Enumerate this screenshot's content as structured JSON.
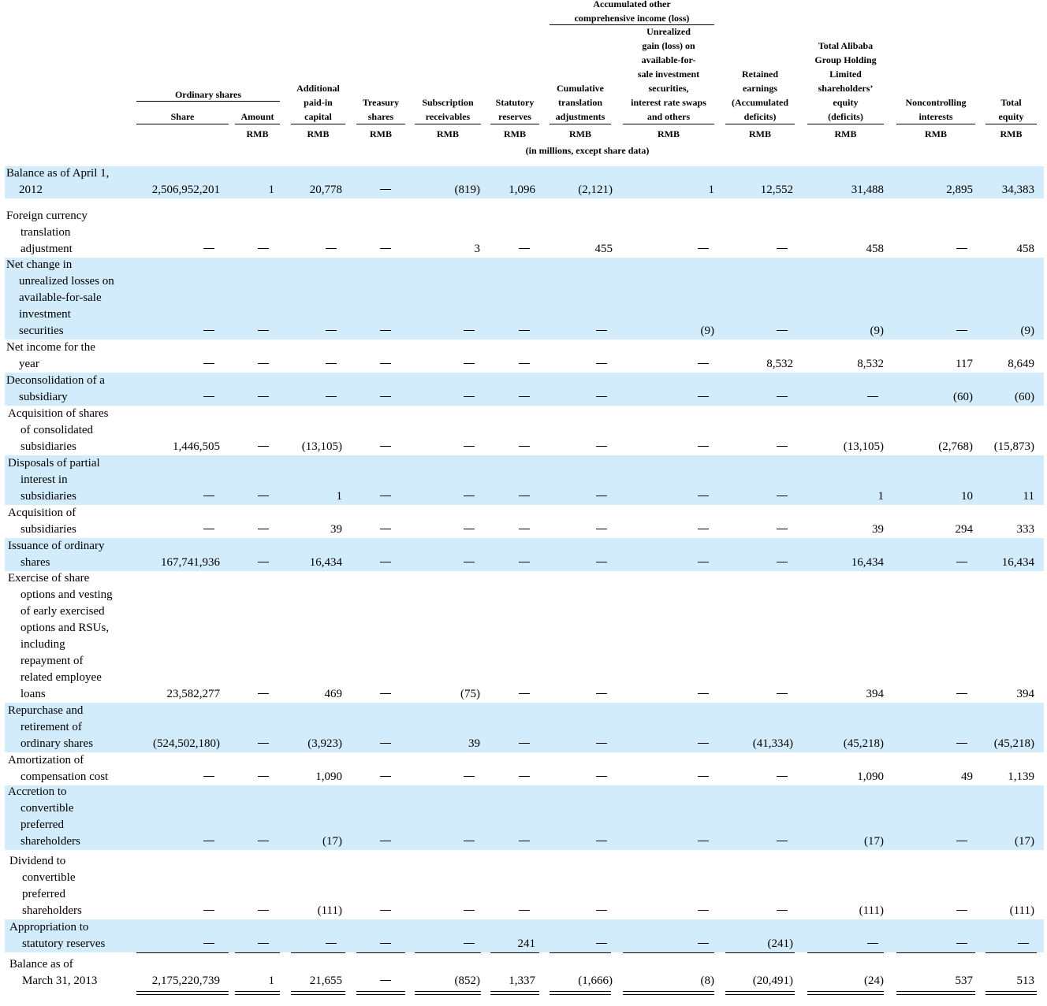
{
  "header": {
    "aoci_group": [
      "Accumulated other",
      "comprehensive income (loss)"
    ],
    "ordinary_group": "Ordinary shares",
    "columns": [
      {
        "label": [
          "Share"
        ],
        "currency": ""
      },
      {
        "label": [
          "Amount"
        ],
        "currency": "RMB"
      },
      {
        "label": [
          "Additional",
          "paid-in",
          "capital"
        ],
        "currency": "RMB"
      },
      {
        "label": [
          "Treasury",
          "shares"
        ],
        "currency": "RMB"
      },
      {
        "label": [
          "Subscription",
          "receivables"
        ],
        "currency": "RMB"
      },
      {
        "label": [
          "Statutory",
          "reserves"
        ],
        "currency": "RMB"
      },
      {
        "label": [
          "Cumulative",
          "translation",
          "adjustments"
        ],
        "currency": "RMB"
      },
      {
        "label": [
          "Unrealized",
          "gain (loss) on",
          "available-for-",
          "sale investment",
          "securities,",
          "interest rate swaps",
          "and others"
        ],
        "currency": "RMB"
      },
      {
        "label": [
          "Retained",
          "earnings",
          "(Accumulated",
          "deficits)"
        ],
        "currency": "RMB"
      },
      {
        "label": [
          "Total Alibaba",
          "Group Holding",
          "Limited",
          "shareholders’",
          "equity",
          "(deficits)"
        ],
        "currency": "RMB"
      },
      {
        "label": [
          "Noncontrolling",
          "interests"
        ],
        "currency": "RMB"
      },
      {
        "label": [
          "Total",
          "equity"
        ],
        "currency": "RMB"
      }
    ],
    "units_note": "(in millions, except share data)"
  },
  "rows": [
    {
      "label": [
        "Balance as of April 1,",
        "2012"
      ],
      "values": [
        "2,506,952,201",
        "1",
        "20,778",
        "—",
        "(819)",
        "1,096",
        "(2,121)",
        "1",
        "12,552",
        "31,488",
        "2,895",
        "34,383"
      ]
    },
    {
      "label": [
        "Foreign currency",
        "translation",
        "adjustment"
      ],
      "values": [
        "—",
        "—",
        "—",
        "—",
        "3",
        "—",
        "455",
        "—",
        "—",
        "458",
        "—",
        "458"
      ]
    },
    {
      "label": [
        "Net change in",
        "unrealized losses on",
        "available-for-sale",
        "investment",
        "securities"
      ],
      "values": [
        "—",
        "—",
        "—",
        "—",
        "—",
        "—",
        "—",
        "(9)",
        "—",
        "(9)",
        "—",
        "(9)"
      ]
    },
    {
      "label": [
        "Net income for the",
        "year"
      ],
      "values": [
        "—",
        "—",
        "—",
        "—",
        "—",
        "—",
        "—",
        "—",
        "8,532",
        "8,532",
        "117",
        "8,649"
      ]
    },
    {
      "label": [
        "Deconsolidation of a",
        "subsidiary"
      ],
      "values": [
        "—",
        "—",
        "—",
        "—",
        "—",
        "—",
        "—",
        "—",
        "—",
        "—",
        "(60)",
        "(60)"
      ]
    },
    {
      "label": [
        "Acquisition of shares",
        "of consolidated",
        "subsidiaries"
      ],
      "values": [
        "1,446,505",
        "—",
        "(13,105)",
        "—",
        "—",
        "—",
        "—",
        "—",
        "—",
        "(13,105)",
        "(2,768)",
        "(15,873)"
      ]
    },
    {
      "label": [
        "Disposals of partial",
        "interest in",
        "subsidiaries"
      ],
      "values": [
        "—",
        "—",
        "1",
        "—",
        "—",
        "—",
        "—",
        "—",
        "—",
        "1",
        "10",
        "11"
      ]
    },
    {
      "label": [
        "Acquisition of",
        "subsidiaries"
      ],
      "values": [
        "—",
        "—",
        "39",
        "—",
        "—",
        "—",
        "—",
        "—",
        "—",
        "39",
        "294",
        "333"
      ]
    },
    {
      "label": [
        "Issuance of ordinary",
        "shares"
      ],
      "values": [
        "167,741,936",
        "—",
        "16,434",
        "—",
        "—",
        "—",
        "—",
        "—",
        "—",
        "16,434",
        "—",
        "16,434"
      ]
    },
    {
      "label": [
        "Exercise of share",
        "options and vesting",
        "of early exercised",
        "options and RSUs,",
        "including",
        "repayment of",
        "related employee",
        "loans"
      ],
      "values": [
        "23,582,277",
        "—",
        "469",
        "—",
        "(75)",
        "—",
        "—",
        "—",
        "—",
        "394",
        "—",
        "394"
      ]
    },
    {
      "label": [
        "Repurchase and",
        "retirement of",
        "ordinary shares"
      ],
      "values": [
        "(524,502,180)",
        "—",
        "(3,923)",
        "—",
        "39",
        "—",
        "—",
        "—",
        "(41,334)",
        "(45,218)",
        "—",
        "(45,218)"
      ]
    },
    {
      "label": [
        "Amortization of",
        "compensation cost"
      ],
      "values": [
        "—",
        "—",
        "1,090",
        "—",
        "—",
        "—",
        "—",
        "—",
        "—",
        "1,090",
        "49",
        "1,139"
      ]
    },
    {
      "label": [
        "Accretion to",
        "convertible",
        "preferred",
        "shareholders"
      ],
      "values": [
        "—",
        "—",
        "(17)",
        "—",
        "—",
        "—",
        "—",
        "—",
        "—",
        "(17)",
        "—",
        "(17)"
      ]
    },
    {
      "label": [
        "Dividend to",
        "convertible",
        "preferred",
        "shareholders"
      ],
      "values": [
        "—",
        "—",
        "(111)",
        "—",
        "—",
        "—",
        "—",
        "—",
        "—",
        "(111)",
        "—",
        "(111)"
      ]
    },
    {
      "label": [
        "Appropriation to",
        "statutory reserves"
      ],
      "values": [
        "—",
        "—",
        "—",
        "—",
        "—",
        "241",
        "—",
        "—",
        "(241)",
        "—",
        "—",
        "—"
      ]
    },
    {
      "label": [
        "Balance as of",
        "March 31, 2013"
      ],
      "values": [
        "2,175,220,739",
        "1",
        "21,655",
        "—",
        "(852)",
        "1,337",
        "(1,666)",
        "(8)",
        "(20,491)",
        "(24)",
        "537",
        "513"
      ]
    }
  ]
}
